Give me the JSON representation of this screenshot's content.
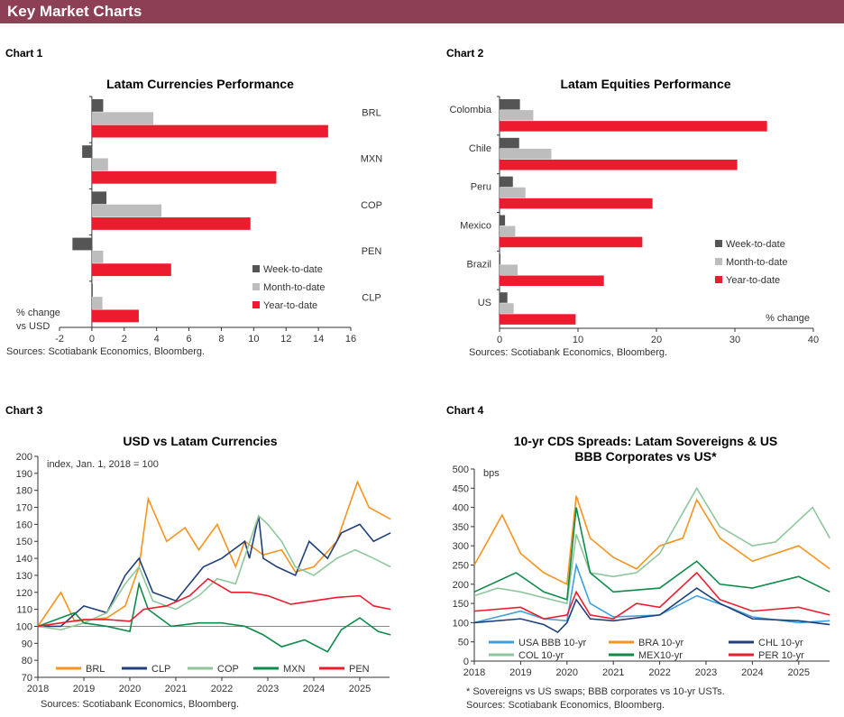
{
  "header": {
    "title": "Key Market Charts"
  },
  "colors": {
    "header_bg": "#8c3f55",
    "week": "#555555",
    "month": "#bdbdbd",
    "ytd": "#ec1c2e"
  },
  "chart_data": [
    {
      "label": "Chart 1",
      "type": "bar",
      "orientation": "horizontal",
      "title": "Latam Currencies Performance",
      "categories": [
        "BRL",
        "MXN",
        "COP",
        "PEN",
        "CLP"
      ],
      "series": [
        {
          "name": "Week-to-date",
          "values": [
            0.7,
            -0.6,
            0.9,
            -1.2,
            0.0
          ]
        },
        {
          "name": "Month-to-date",
          "values": [
            3.8,
            1.0,
            4.3,
            0.7,
            0.65
          ]
        },
        {
          "name": "Year-to-date",
          "values": [
            14.6,
            11.4,
            9.8,
            4.9,
            2.9
          ]
        }
      ],
      "xlim": [
        -2,
        16
      ],
      "xticks": [
        "-2",
        "0",
        "2",
        "4",
        "6",
        "8",
        "10",
        "12",
        "14",
        "16"
      ],
      "unit_label": "% change vs USD",
      "legend": "bottom-right",
      "source": "Sources:  Scotiabank  Economics,  Bloomberg."
    },
    {
      "label": "Chart 2",
      "type": "bar",
      "orientation": "horizontal",
      "title": "Latam Equities Performance",
      "categories": [
        "Colombia",
        "Chile",
        "Peru",
        "Mexico",
        "Brazil",
        "US"
      ],
      "series": [
        {
          "name": "Week-to-date",
          "values": [
            2.6,
            2.5,
            1.7,
            0.7,
            0.1,
            1.0
          ]
        },
        {
          "name": "Month-to-date",
          "values": [
            4.3,
            6.6,
            3.3,
            2.0,
            2.3,
            1.8
          ]
        },
        {
          "name": "Year-to-date",
          "values": [
            34.1,
            30.3,
            19.5,
            18.2,
            13.3,
            9.7
          ]
        }
      ],
      "xlim": [
        0,
        40
      ],
      "xticks": [
        "0",
        "10",
        "20",
        "30",
        "40"
      ],
      "unit_label": "% change",
      "legend": "right",
      "source": "Sources:  Scotiabank  Economics,  Bloomberg."
    },
    {
      "label": "Chart 3",
      "type": "line",
      "title": "USD vs Latam Currencies",
      "annotation": "index,  Jan. 1, 2018 = 100",
      "ylim": [
        70,
        200
      ],
      "yticks": [
        "70",
        "80",
        "90",
        "100",
        "110",
        "120",
        "130",
        "140",
        "150",
        "160",
        "170",
        "180",
        "190",
        "200"
      ],
      "xticks": [
        "2018",
        "2019",
        "2020",
        "2021",
        "2022",
        "2023",
        "2024",
        "2025"
      ],
      "reference_line": 100,
      "legend": "bottom",
      "series": [
        {
          "name": "BRL",
          "color": "#f7931e",
          "points": [
            [
              2018,
              100
            ],
            [
              2018.5,
              120
            ],
            [
              2018.8,
              103
            ],
            [
              2019.5,
              105
            ],
            [
              2019.9,
              112
            ],
            [
              2020.2,
              135
            ],
            [
              2020.4,
              175
            ],
            [
              2020.8,
              150
            ],
            [
              2021.2,
              158
            ],
            [
              2021.5,
              145
            ],
            [
              2021.9,
              160
            ],
            [
              2022.3,
              135
            ],
            [
              2022.5,
              150
            ],
            [
              2022.9,
              142
            ],
            [
              2023.3,
              145
            ],
            [
              2023.6,
              132
            ],
            [
              2024,
              135
            ],
            [
              2024.5,
              150
            ],
            [
              2024.95,
              185
            ],
            [
              2025.2,
              170
            ],
            [
              2025.67,
              163
            ]
          ]
        },
        {
          "name": "CLP",
          "color": "#1f3f7a",
          "points": [
            [
              2018,
              100
            ],
            [
              2018.5,
              100
            ],
            [
              2019,
              112
            ],
            [
              2019.5,
              108
            ],
            [
              2019.9,
              130
            ],
            [
              2020.2,
              140
            ],
            [
              2020.5,
              120
            ],
            [
              2021,
              115
            ],
            [
              2021.6,
              135
            ],
            [
              2022,
              140
            ],
            [
              2022.5,
              150
            ],
            [
              2022.6,
              140
            ],
            [
              2022.8,
              165
            ],
            [
              2022.9,
              140
            ],
            [
              2023.2,
              135
            ],
            [
              2023.6,
              130
            ],
            [
              2023.9,
              150
            ],
            [
              2024.3,
              140
            ],
            [
              2024.6,
              155
            ],
            [
              2025,
              160
            ],
            [
              2025.3,
              150
            ],
            [
              2025.67,
              155
            ]
          ]
        },
        {
          "name": "COP",
          "color": "#8fc79b",
          "points": [
            [
              2018,
              100
            ],
            [
              2018.5,
              98
            ],
            [
              2019,
              102
            ],
            [
              2019.5,
              108
            ],
            [
              2019.9,
              125
            ],
            [
              2020.2,
              135
            ],
            [
              2020.5,
              115
            ],
            [
              2021,
              110
            ],
            [
              2021.5,
              118
            ],
            [
              2021.9,
              128
            ],
            [
              2022.3,
              125
            ],
            [
              2022.8,
              165
            ],
            [
              2023,
              160
            ],
            [
              2023.3,
              150
            ],
            [
              2023.6,
              135
            ],
            [
              2024,
              130
            ],
            [
              2024.5,
              140
            ],
            [
              2024.9,
              145
            ],
            [
              2025.3,
              140
            ],
            [
              2025.67,
              135
            ]
          ]
        },
        {
          "name": "MXN",
          "color": "#0f8a4a",
          "points": [
            [
              2018,
              100
            ],
            [
              2018.5,
              105
            ],
            [
              2018.8,
              108
            ],
            [
              2019,
              102
            ],
            [
              2019.5,
              100
            ],
            [
              2020,
              97
            ],
            [
              2020.2,
              125
            ],
            [
              2020.4,
              110
            ],
            [
              2020.9,
              100
            ],
            [
              2021.5,
              102
            ],
            [
              2022,
              102
            ],
            [
              2022.5,
              100
            ],
            [
              2022.9,
              95
            ],
            [
              2023.3,
              88
            ],
            [
              2023.8,
              92
            ],
            [
              2024.3,
              85
            ],
            [
              2024.6,
              98
            ],
            [
              2025,
              105
            ],
            [
              2025.4,
              97
            ],
            [
              2025.67,
              95
            ]
          ]
        },
        {
          "name": "PEN",
          "color": "#ec1c2e",
          "points": [
            [
              2018,
              100
            ],
            [
              2018.5,
              102
            ],
            [
              2019,
              104
            ],
            [
              2019.5,
              104
            ],
            [
              2020,
              103
            ],
            [
              2020.3,
              110
            ],
            [
              2020.8,
              112
            ],
            [
              2021.3,
              118
            ],
            [
              2021.7,
              128
            ],
            [
              2022.2,
              120
            ],
            [
              2022.6,
              120
            ],
            [
              2023,
              118
            ],
            [
              2023.5,
              113
            ],
            [
              2024,
              115
            ],
            [
              2024.5,
              117
            ],
            [
              2025,
              118
            ],
            [
              2025.3,
              112
            ],
            [
              2025.67,
              110
            ]
          ]
        }
      ],
      "source": "Sources:  Scotiabank  Economics,  Bloomberg."
    },
    {
      "label": "Chart 4",
      "type": "line",
      "title": "10-yr CDS Spreads: Latam Sovereigns & US",
      "title2": "BBB Corporates vs US*",
      "annotation": "bps",
      "ylim": [
        0,
        500
      ],
      "yticks": [
        "0",
        "50",
        "100",
        "150",
        "200",
        "250",
        "300",
        "350",
        "400",
        "450",
        "500"
      ],
      "xticks": [
        "2018",
        "2019",
        "2020",
        "2021",
        "2022",
        "2023",
        "2024",
        "2025"
      ],
      "legend": "bottom",
      "series": [
        {
          "name": "USA BBB 10-yr",
          "color": "#3fa0dc",
          "points": [
            [
              2018,
              100
            ],
            [
              2019,
              130
            ],
            [
              2019.5,
              110
            ],
            [
              2020,
              105
            ],
            [
              2020.2,
              250
            ],
            [
              2020.5,
              150
            ],
            [
              2021,
              115
            ],
            [
              2022,
              120
            ],
            [
              2022.8,
              170
            ],
            [
              2023.5,
              140
            ],
            [
              2024,
              115
            ],
            [
              2025,
              100
            ],
            [
              2025.67,
              105
            ]
          ]
        },
        {
          "name": "BRA 10-yr",
          "color": "#f7931e",
          "points": [
            [
              2018,
              250
            ],
            [
              2018.6,
              380
            ],
            [
              2019,
              280
            ],
            [
              2019.5,
              230
            ],
            [
              2020,
              200
            ],
            [
              2020.2,
              430
            ],
            [
              2020.5,
              320
            ],
            [
              2021,
              270
            ],
            [
              2021.5,
              240
            ],
            [
              2022,
              300
            ],
            [
              2022.5,
              320
            ],
            [
              2022.8,
              420
            ],
            [
              2023.3,
              320
            ],
            [
              2024,
              260
            ],
            [
              2024.5,
              280
            ],
            [
              2025,
              300
            ],
            [
              2025.67,
              240
            ]
          ]
        },
        {
          "name": "CHL 10-yr",
          "color": "#1f3f7a",
          "points": [
            [
              2018,
              100
            ],
            [
              2019,
              110
            ],
            [
              2019.5,
              95
            ],
            [
              2019.8,
              75
            ],
            [
              2020,
              100
            ],
            [
              2020.2,
              160
            ],
            [
              2020.5,
              110
            ],
            [
              2021,
              105
            ],
            [
              2022,
              120
            ],
            [
              2022.8,
              190
            ],
            [
              2023.3,
              150
            ],
            [
              2024,
              110
            ],
            [
              2025,
              105
            ],
            [
              2025.67,
              95
            ]
          ]
        },
        {
          "name": "COL 10-yr",
          "color": "#8fc79b",
          "points": [
            [
              2018,
              170
            ],
            [
              2018.5,
              190
            ],
            [
              2019,
              180
            ],
            [
              2020,
              150
            ],
            [
              2020.2,
              330
            ],
            [
              2020.5,
              230
            ],
            [
              2021,
              220
            ],
            [
              2021.5,
              230
            ],
            [
              2022,
              280
            ],
            [
              2022.8,
              450
            ],
            [
              2023.3,
              350
            ],
            [
              2024,
              300
            ],
            [
              2024.5,
              310
            ],
            [
              2025.3,
              400
            ],
            [
              2025.67,
              320
            ]
          ]
        },
        {
          "name": "MEX10-yr",
          "color": "#0f8a4a",
          "points": [
            [
              2018,
              180
            ],
            [
              2018.9,
              230
            ],
            [
              2019.5,
              180
            ],
            [
              2020,
              160
            ],
            [
              2020.2,
              400
            ],
            [
              2020.5,
              230
            ],
            [
              2021,
              180
            ],
            [
              2022,
              190
            ],
            [
              2022.8,
              260
            ],
            [
              2023.3,
              200
            ],
            [
              2024,
              190
            ],
            [
              2025,
              220
            ],
            [
              2025.67,
              180
            ]
          ]
        },
        {
          "name": "PER 10-yr",
          "color": "#ec1c2e",
          "points": [
            [
              2018,
              130
            ],
            [
              2019,
              140
            ],
            [
              2019.5,
              110
            ],
            [
              2020,
              120
            ],
            [
              2020.2,
              180
            ],
            [
              2020.5,
              120
            ],
            [
              2021,
              110
            ],
            [
              2021.5,
              150
            ],
            [
              2022,
              140
            ],
            [
              2022.8,
              230
            ],
            [
              2023.3,
              160
            ],
            [
              2024,
              130
            ],
            [
              2025,
              140
            ],
            [
              2025.67,
              120
            ]
          ]
        }
      ],
      "footnote": "* Sovereigns vs US swaps;  BBB corporates   vs 10-yr USTs.",
      "source": "Sources:  Scotiabank   Economics,  Bloomberg."
    }
  ]
}
